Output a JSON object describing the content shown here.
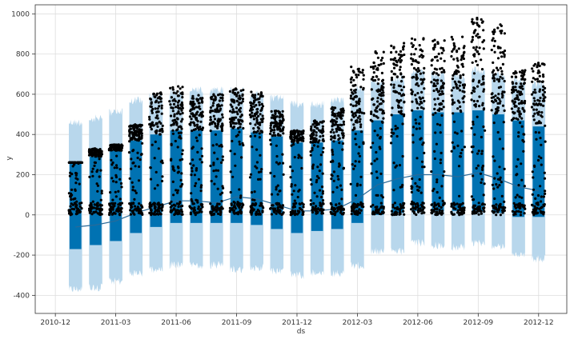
{
  "chart_data": {
    "type": "scatter",
    "title": "",
    "xlabel": "ds",
    "ylabel": "y",
    "ylim": [
      -490,
      1045
    ],
    "xlim": [
      -1.0,
      25.4
    ],
    "y_ticks": [
      -400,
      -200,
      0,
      200,
      400,
      600,
      800,
      1000
    ],
    "x_ticks": [
      {
        "label": "2010-12",
        "value": 0
      },
      {
        "label": "2011-03",
        "value": 3
      },
      {
        "label": "2011-06",
        "value": 6
      },
      {
        "label": "2011-09",
        "value": 9
      },
      {
        "label": "2011-12",
        "value": 12
      },
      {
        "label": "2012-03",
        "value": 15
      },
      {
        "label": "2012-06",
        "value": 18
      },
      {
        "label": "2012-09",
        "value": 21
      },
      {
        "label": "2012-12",
        "value": 24
      }
    ],
    "grid": true,
    "colors": {
      "points": "#000000",
      "forecast": "#0072b2",
      "interval": "#b8d7ec",
      "grid": "#dddddd",
      "frame": "#333333"
    },
    "series": [
      {
        "name": "observed",
        "style": "points"
      },
      {
        "name": "yhat",
        "style": "line"
      },
      {
        "name": "uncertainty interval",
        "style": "band"
      }
    ],
    "clusters": [
      {
        "x": 1.0,
        "obs_min": 0,
        "obs_max": 260,
        "band_lo": -170,
        "band_hi": 260,
        "unc_lo": -390,
        "unc_hi": 480,
        "trend": -60
      },
      {
        "x": 2.0,
        "obs_min": 0,
        "obs_max": 330,
        "band_lo": -150,
        "band_hi": 290,
        "unc_lo": -380,
        "unc_hi": 500,
        "trend": -50
      },
      {
        "x": 3.0,
        "obs_min": 0,
        "obs_max": 350,
        "band_lo": -130,
        "band_hi": 320,
        "unc_lo": -350,
        "unc_hi": 530,
        "trend": -30
      },
      {
        "x": 4.0,
        "obs_min": 0,
        "obs_max": 450,
        "band_lo": -90,
        "band_hi": 370,
        "unc_lo": -310,
        "unc_hi": 590,
        "trend": 10
      },
      {
        "x": 5.0,
        "obs_min": 0,
        "obs_max": 610,
        "band_lo": -60,
        "band_hi": 400,
        "unc_lo": -290,
        "unc_hi": 610,
        "trend": 40
      },
      {
        "x": 6.0,
        "obs_min": 0,
        "obs_max": 640,
        "band_lo": -40,
        "band_hi": 420,
        "unc_lo": -270,
        "unc_hi": 630,
        "trend": 70
      },
      {
        "x": 7.0,
        "obs_min": 0,
        "obs_max": 600,
        "band_lo": -40,
        "band_hi": 420,
        "unc_lo": -270,
        "unc_hi": 640,
        "trend": 70
      },
      {
        "x": 8.0,
        "obs_min": 0,
        "obs_max": 600,
        "band_lo": -40,
        "band_hi": 420,
        "unc_lo": -270,
        "unc_hi": 640,
        "trend": 60
      },
      {
        "x": 9.0,
        "obs_min": 0,
        "obs_max": 630,
        "band_lo": -40,
        "band_hi": 430,
        "unc_lo": -290,
        "unc_hi": 640,
        "trend": 90
      },
      {
        "x": 10.0,
        "obs_min": 0,
        "obs_max": 620,
        "band_lo": -50,
        "band_hi": 410,
        "unc_lo": -280,
        "unc_hi": 620,
        "trend": 80
      },
      {
        "x": 11.0,
        "obs_min": 0,
        "obs_max": 520,
        "band_lo": -70,
        "band_hi": 390,
        "unc_lo": -300,
        "unc_hi": 600,
        "trend": 50
      },
      {
        "x": 12.0,
        "obs_min": 0,
        "obs_max": 420,
        "band_lo": -90,
        "band_hi": 360,
        "unc_lo": -320,
        "unc_hi": 570,
        "trend": 20
      },
      {
        "x": 13.0,
        "obs_min": 0,
        "obs_max": 470,
        "band_lo": -80,
        "band_hi": 360,
        "unc_lo": -310,
        "unc_hi": 570,
        "trend": 20
      },
      {
        "x": 14.0,
        "obs_min": 0,
        "obs_max": 540,
        "band_lo": -70,
        "band_hi": 370,
        "unc_lo": -310,
        "unc_hi": 590,
        "trend": 30
      },
      {
        "x": 15.0,
        "obs_min": 0,
        "obs_max": 740,
        "band_lo": -40,
        "band_hi": 420,
        "unc_lo": -270,
        "unc_hi": 640,
        "trend": 80
      },
      {
        "x": 16.0,
        "obs_min": 0,
        "obs_max": 820,
        "band_lo": 0,
        "band_hi": 470,
        "unc_lo": -200,
        "unc_hi": 680,
        "trend": 150
      },
      {
        "x": 17.0,
        "obs_min": 0,
        "obs_max": 860,
        "band_lo": 10,
        "band_hi": 500,
        "unc_lo": -200,
        "unc_hi": 700,
        "trend": 180
      },
      {
        "x": 18.0,
        "obs_min": 0,
        "obs_max": 880,
        "band_lo": 20,
        "band_hi": 520,
        "unc_lo": -160,
        "unc_hi": 730,
        "trend": 200
      },
      {
        "x": 19.0,
        "obs_min": 0,
        "obs_max": 870,
        "band_lo": 20,
        "band_hi": 510,
        "unc_lo": -170,
        "unc_hi": 720,
        "trend": 200
      },
      {
        "x": 20.0,
        "obs_min": 0,
        "obs_max": 890,
        "band_lo": 20,
        "band_hi": 510,
        "unc_lo": -180,
        "unc_hi": 710,
        "trend": 190
      },
      {
        "x": 21.0,
        "obs_min": 0,
        "obs_max": 980,
        "band_lo": 20,
        "band_hi": 520,
        "unc_lo": -160,
        "unc_hi": 740,
        "trend": 210
      },
      {
        "x": 22.0,
        "obs_min": 0,
        "obs_max": 950,
        "band_lo": 10,
        "band_hi": 500,
        "unc_lo": -180,
        "unc_hi": 720,
        "trend": 180
      },
      {
        "x": 23.0,
        "obs_min": 0,
        "obs_max": 720,
        "band_lo": -10,
        "band_hi": 470,
        "unc_lo": -220,
        "unc_hi": 690,
        "trend": 140
      },
      {
        "x": 24.0,
        "obs_min": 0,
        "obs_max": 760,
        "band_lo": -10,
        "band_hi": 440,
        "unc_lo": -240,
        "unc_hi": 670,
        "trend": 120
      }
    ]
  }
}
